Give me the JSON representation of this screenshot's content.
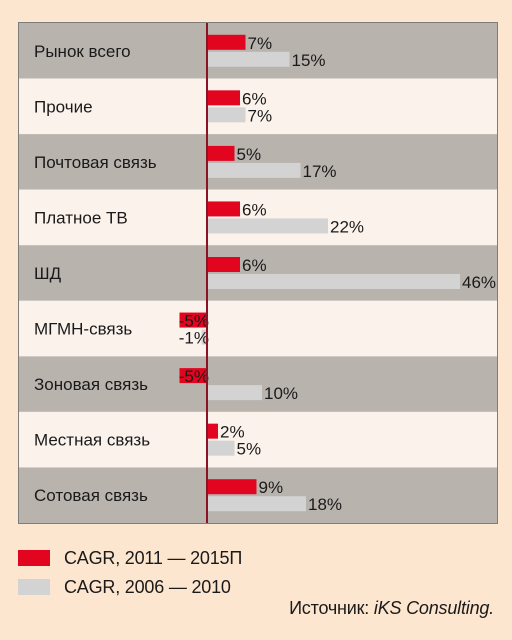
{
  "chart_data": {
    "type": "bar",
    "orientation": "horizontal",
    "categories": [
      "Рынок всего",
      "Прочие",
      "Почтовая связь",
      "Платное ТВ",
      "ШД",
      "МГМН-связь",
      "Зоновая связь",
      "Местная связь",
      "Сотовая связь"
    ],
    "series": [
      {
        "name": "CAGR, 2011 — 2015П",
        "color": "#e2051f",
        "values": [
          7,
          6,
          5,
          6,
          6,
          -5,
          -5,
          2,
          9
        ],
        "labels": [
          "7%",
          "6%",
          "5%",
          "6%",
          "6%",
          "-5%",
          "-5%",
          "2%",
          "9%"
        ]
      },
      {
        "name": "CAGR, 2006 — 2010",
        "color": "#d3d3d3",
        "values": [
          15,
          7,
          17,
          22,
          46,
          -1,
          10,
          5,
          18
        ],
        "labels": [
          "15%",
          "7%",
          "17%",
          "22%",
          "46%",
          "-1%",
          "10%",
          "5%",
          "18%"
        ]
      }
    ],
    "legend_position": "bottom-left",
    "zero_line_color": "#8a1326",
    "row_colors": [
      "#b9b3ae",
      "#fbf2ec"
    ]
  },
  "source": {
    "label": "Источник: ",
    "name": "iKS Consulting."
  }
}
